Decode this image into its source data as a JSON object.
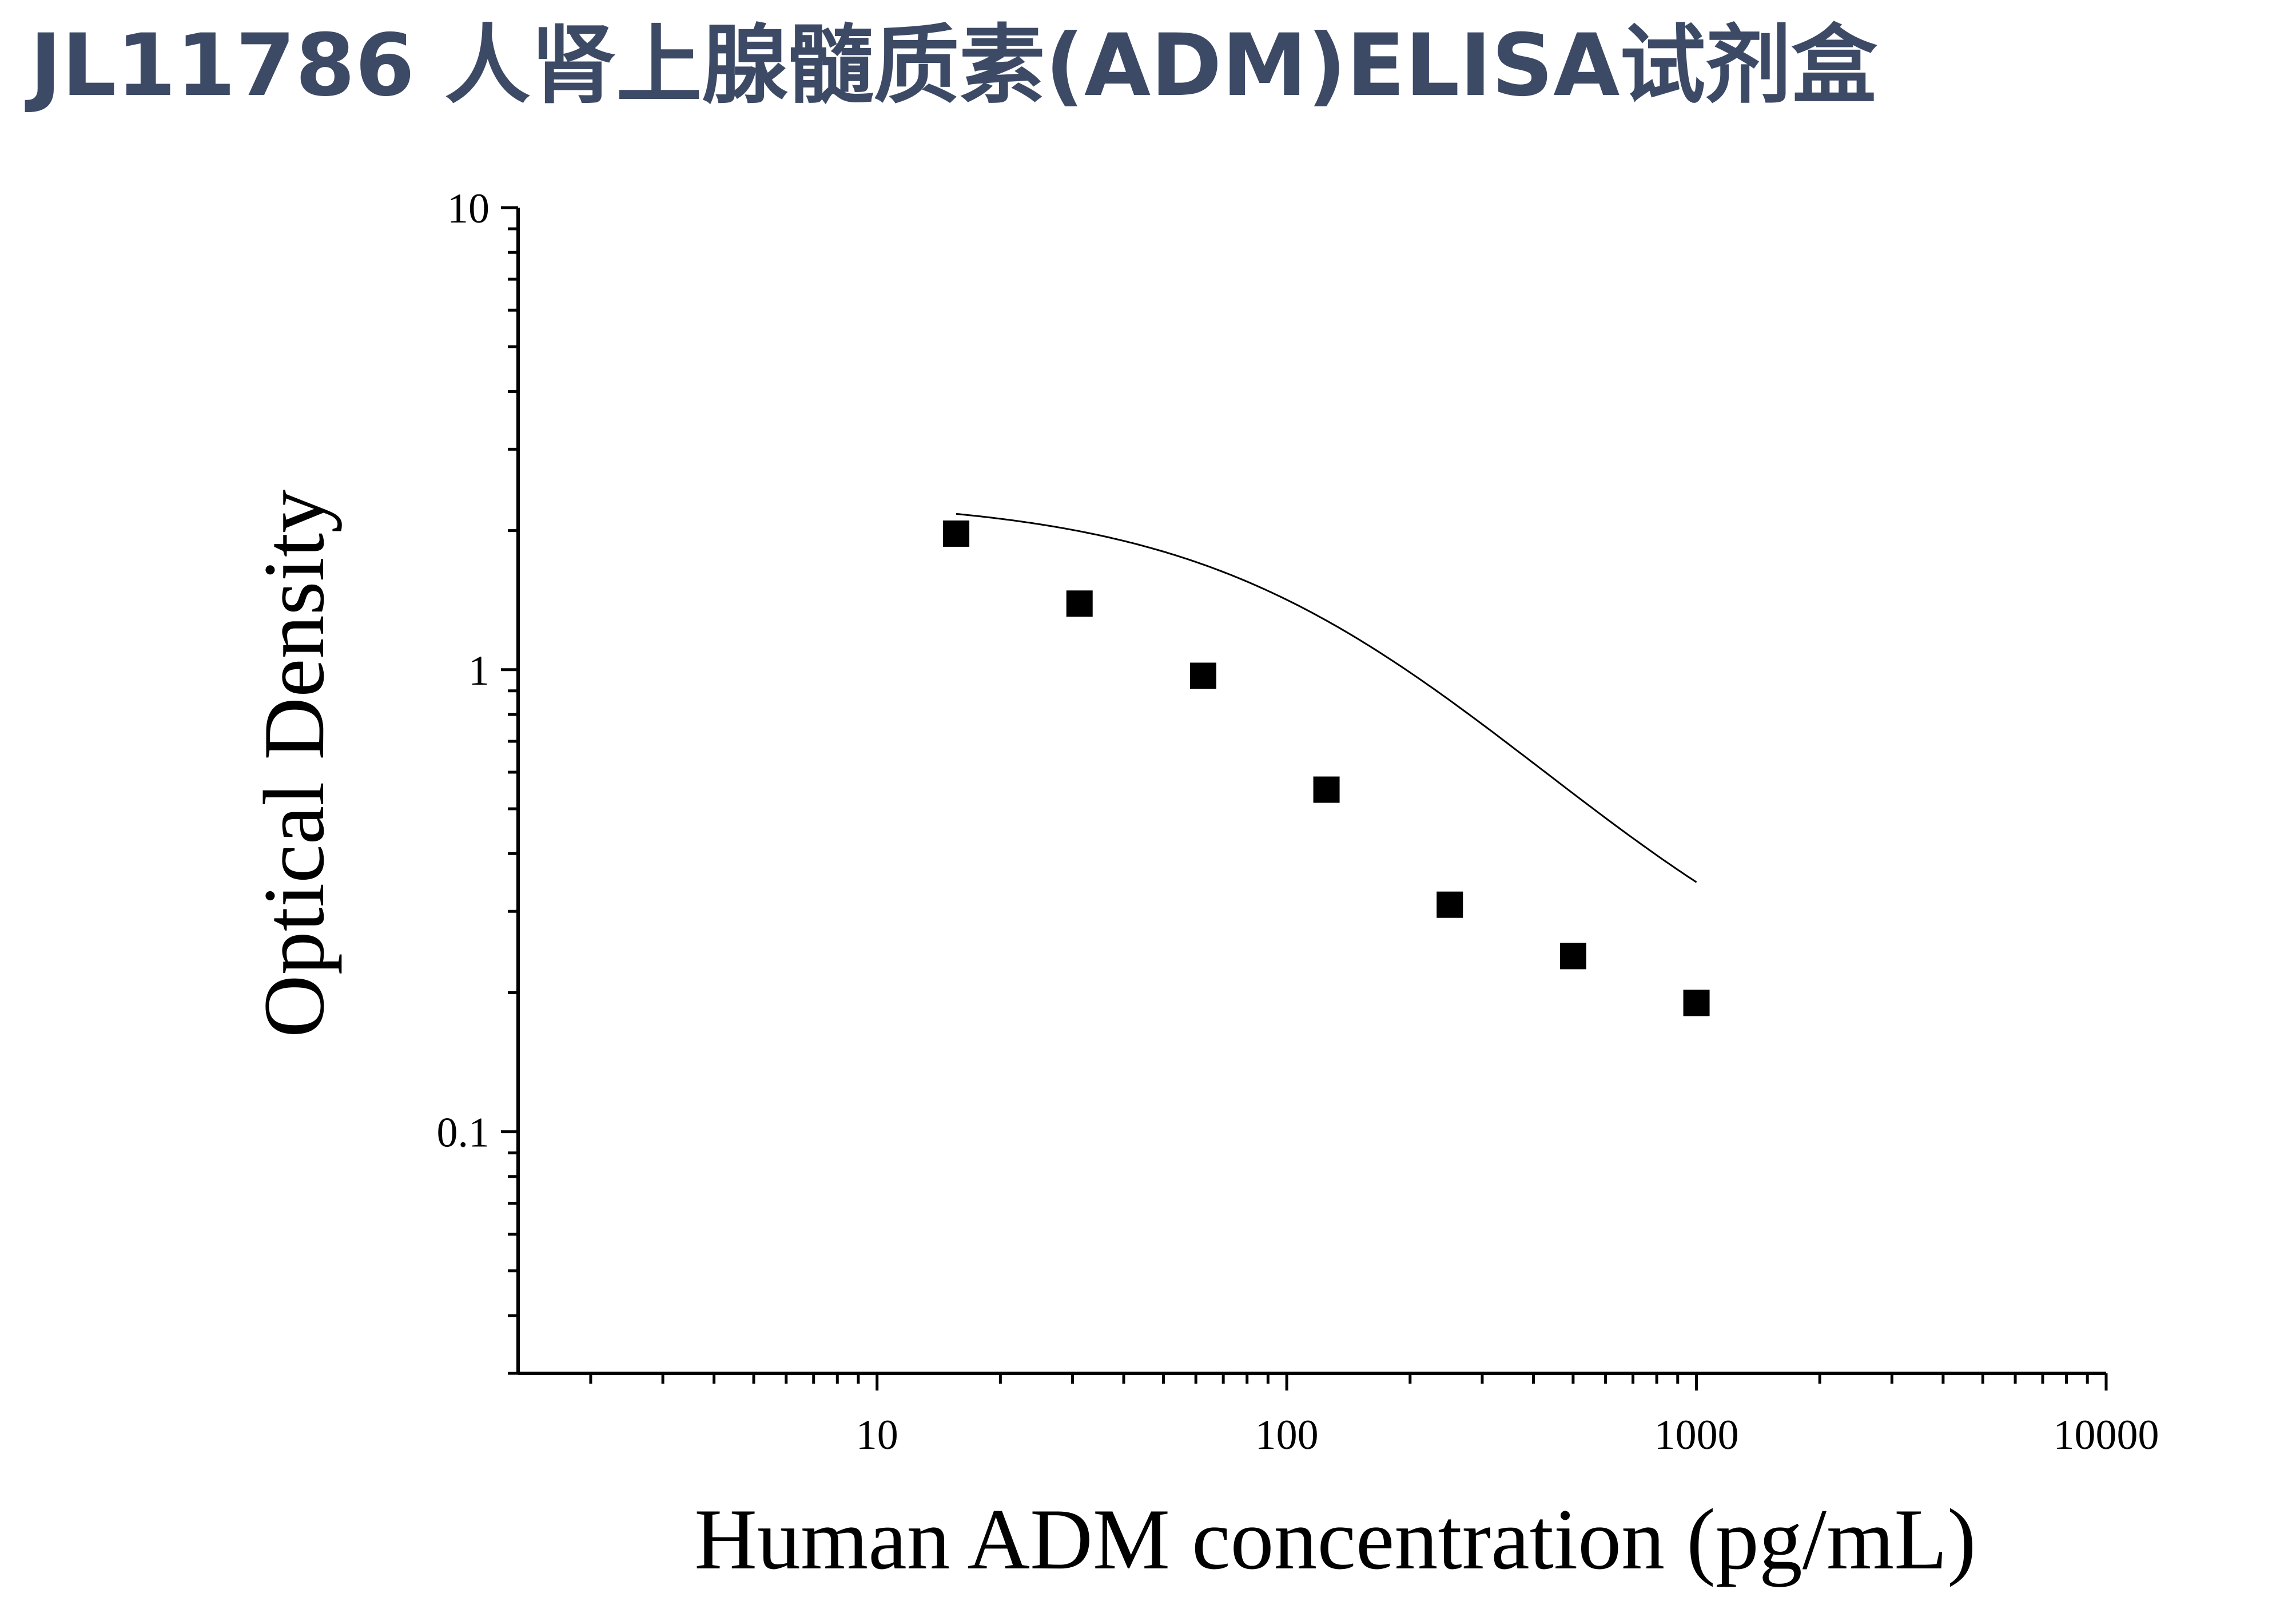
{
  "title": "JL11786 人肾上腺髓质素(ADM)ELISA试剂盒",
  "chart_data": {
    "type": "scatter",
    "title": "JL11786 人肾上腺髓质素(ADM)ELISA试剂盒",
    "xlabel": "Human ADM concentration (pg/mL)",
    "ylabel": "Optical Density",
    "xscale": "log",
    "yscale": "log",
    "xlim": [
      1.33,
      10000
    ],
    "ylim": [
      0.03,
      10
    ],
    "x_ticks": [
      10,
      100,
      1000,
      10000
    ],
    "x_tick_labels": [
      "10",
      "100",
      "1000",
      "10000"
    ],
    "y_ticks": [
      0.1,
      1,
      10
    ],
    "y_tick_labels": [
      "0.1",
      "1",
      "10"
    ],
    "grid": false,
    "legend": "none",
    "series": [
      {
        "marker": "square",
        "color": "#000000",
        "x": [
          15.6,
          31.2,
          62.5,
          125,
          250,
          500,
          1000
        ],
        "y": [
          1.97,
          1.39,
          0.97,
          0.55,
          0.31,
          0.24,
          0.19
        ]
      }
    ],
    "fit_curve": {
      "model": "four-parameter logistic",
      "color": "#000000",
      "x_range": [
        15.6,
        1000
      ]
    },
    "colors": {
      "title": "#3d4a66",
      "axis": "#000000",
      "marker": "#000000"
    }
  }
}
